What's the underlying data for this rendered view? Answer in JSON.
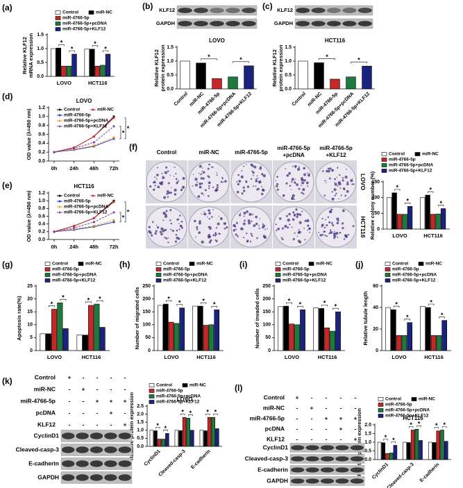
{
  "chart_data": [
    {
      "type": "bar",
      "label": "(a)",
      "ylabel": [
        "Relative KLF12",
        "mRNA expression"
      ],
      "categories": [
        "LOVO",
        "HCT116"
      ],
      "series": [
        {
          "name": "Control",
          "color": "#ffffff",
          "values": [
            1.0,
            0.98
          ]
        },
        {
          "name": "miR-NC",
          "color": "#000000",
          "values": [
            1.02,
            0.98
          ]
        },
        {
          "name": "miR-4766-5p",
          "color": "#c62828",
          "values": [
            0.37,
            0.37
          ]
        },
        {
          "name": "miR-4766-5p+pcDNA",
          "color": "#1b7a3c",
          "values": [
            0.37,
            0.4
          ]
        },
        {
          "name": "miR-4766-5p+KLF12",
          "color": "#1a237e",
          "values": [
            0.8,
            0.8
          ]
        }
      ],
      "ylim": [
        0,
        1.5
      ],
      "yticks": [
        {
          "value": 0,
          "label": "0.0"
        },
        0.5,
        {
          "value": 1,
          "label": "1.0"
        },
        1.5
      ],
      "annotations": [
        "*",
        "*",
        "*",
        "*"
      ]
    },
    {
      "type": "bar",
      "label": "(b)",
      "title": "LOVO",
      "ylabel": [
        "Relative KLF12",
        "protein expression"
      ],
      "categories": [
        "Control",
        "miR-NC",
        "miR-4766-5p",
        "miR-4766-5p+pcDNA",
        "miR-4766-5p+KLF12"
      ],
      "values": [
        1.0,
        0.93,
        0.37,
        0.43,
        0.83
      ],
      "colors": [
        "#ffffff",
        "#000000",
        "#c62828",
        "#1b7a3c",
        "#1a237e"
      ],
      "ylim": [
        0,
        1.5
      ],
      "yticks": [
        {
          "value": 0,
          "label": "0.0"
        },
        0.5,
        {
          "value": 1,
          "label": "1.0"
        },
        1.5
      ],
      "annotations": [
        "*",
        "*"
      ]
    },
    {
      "type": "bar",
      "label": "(c)",
      "title": "HCT116",
      "ylabel": [
        "Relative KLF12",
        "protein expression"
      ],
      "categories": [
        "Control",
        "miR-NC",
        "miR-4766-5p",
        "miR-4766-5p+pcDNA",
        "miR-4766-5p+KLF12"
      ],
      "values": [
        1.0,
        0.94,
        0.35,
        0.43,
        0.82
      ],
      "colors": [
        "#ffffff",
        "#000000",
        "#c62828",
        "#1b7a3c",
        "#1a237e"
      ],
      "ylim": [
        0,
        1.5
      ],
      "yticks": [
        {
          "value": 0,
          "label": "0.0"
        },
        0.5,
        {
          "value": 1,
          "label": "1.0"
        },
        1.5
      ],
      "annotations": [
        "*",
        "*"
      ]
    },
    {
      "type": "line",
      "label": "(d)",
      "title": "LOVO",
      "ylabel": [
        "OD value (λ=450 nm)"
      ],
      "categories": [
        "0h",
        "24h",
        "48h",
        "72h"
      ],
      "series": [
        {
          "name": "Control",
          "color": "#000000",
          "dash": false,
          "values": [
            0.2,
            0.3,
            0.55,
            1.0
          ]
        },
        {
          "name": "miR-NC",
          "color": "#d32f2f",
          "dash": false,
          "values": [
            0.2,
            0.3,
            0.55,
            0.97
          ]
        },
        {
          "name": "miR-4766-5p",
          "color": "#1e3ad6",
          "dash": false,
          "values": [
            0.2,
            0.25,
            0.33,
            0.5
          ]
        },
        {
          "name": "miR-4766-5p+pcDNA",
          "color": "#f39c12",
          "dash": true,
          "values": [
            0.2,
            0.26,
            0.35,
            0.53
          ]
        },
        {
          "name": "miR-4766-5p+KLF12",
          "color": "#7b3fa0",
          "dash": true,
          "values": [
            0.2,
            0.28,
            0.42,
            0.78
          ]
        }
      ],
      "ylim": [
        0,
        1.2
      ],
      "yticks": [
        {
          "value": 0,
          "label": "0.0"
        },
        0.2,
        0.4,
        0.6,
        0.8,
        {
          "value": 1,
          "label": "1.0"
        },
        1.2
      ],
      "annotations": [
        "*",
        "*"
      ]
    },
    {
      "type": "line",
      "label": "(e)",
      "title": "HCT116",
      "ylabel": [
        "OD value (λ=450 nm)"
      ],
      "categories": [
        "0h",
        "24h",
        "48h",
        "72h"
      ],
      "series": [
        {
          "name": "Control",
          "color": "#000000",
          "dash": false,
          "values": [
            0.2,
            0.35,
            0.55,
            1.0
          ]
        },
        {
          "name": "miR-NC",
          "color": "#d32f2f",
          "dash": false,
          "values": [
            0.2,
            0.35,
            0.55,
            0.97
          ]
        },
        {
          "name": "miR-4766-5p",
          "color": "#1e3ad6",
          "dash": false,
          "values": [
            0.2,
            0.25,
            0.33,
            0.45
          ]
        },
        {
          "name": "miR-4766-5p+pcDNA",
          "color": "#f39c12",
          "dash": true,
          "values": [
            0.2,
            0.27,
            0.35,
            0.5
          ]
        },
        {
          "name": "miR-4766-5p+KLF12",
          "color": "#7b3fa0",
          "dash": true,
          "values": [
            0.2,
            0.3,
            0.45,
            0.7
          ]
        }
      ],
      "ylim": [
        0,
        1.2
      ],
      "yticks": [
        {
          "value": 0,
          "label": "0.0"
        },
        0.2,
        0.4,
        0.6,
        0.8,
        {
          "value": 1,
          "label": "1.0"
        },
        1.2
      ],
      "annotations": [
        "*",
        "*"
      ]
    },
    {
      "type": "bar",
      "label": "(f)",
      "ylabel": [
        "Relative colony number (%)"
      ],
      "categories": [
        "LOVO",
        "HCT116"
      ],
      "series": [
        {
          "name": "Control",
          "color": "#ffffff",
          "values": [
            100,
            100
          ]
        },
        {
          "name": "miR-NC",
          "color": "#000000",
          "values": [
            115,
            108
          ]
        },
        {
          "name": "miR-4766-5p",
          "color": "#c62828",
          "values": [
            47,
            47
          ]
        },
        {
          "name": "miR-4766-5p+pcDNA",
          "color": "#1b7a3c",
          "values": [
            47,
            48
          ]
        },
        {
          "name": "miR-4766-5p+KLF12",
          "color": "#1a237e",
          "values": [
            72,
            65
          ]
        }
      ],
      "ylim": [
        0,
        150
      ],
      "yticks": [
        0,
        50,
        100,
        150
      ],
      "annotations": [
        "*",
        "*",
        "*",
        "*"
      ]
    },
    {
      "type": "bar",
      "label": "(g)",
      "ylabel": [
        "Apoptosis rate(%)"
      ],
      "categories": [
        "LOVO",
        "HCT116"
      ],
      "series": [
        {
          "name": "Control",
          "color": "#ffffff",
          "values": [
            6.5,
            6
          ]
        },
        {
          "name": "miR-NC",
          "color": "#000000",
          "values": [
            6.5,
            6
          ]
        },
        {
          "name": "miR-4766-5p",
          "color": "#c62828",
          "values": [
            16,
            17.5
          ]
        },
        {
          "name": "miR-4766-5p+pcDNA",
          "color": "#1b7a3c",
          "values": [
            18.5,
            18
          ]
        },
        {
          "name": "miR-4766-5p+KLF12",
          "color": "#1a237e",
          "values": [
            8.5,
            9
          ]
        }
      ],
      "ylim": [
        0,
        25
      ],
      "yticks": [
        0,
        5,
        10,
        15,
        20,
        25
      ],
      "annotations": [
        "*",
        "*",
        "*",
        "*"
      ]
    },
    {
      "type": "bar",
      "label": "(h)",
      "ylabel": [
        "Number of migrated cells"
      ],
      "categories": [
        "LOVO",
        "HCT116"
      ],
      "series": [
        {
          "name": "Control",
          "color": "#ffffff",
          "values": [
            175,
            172
          ]
        },
        {
          "name": "miR-NC",
          "color": "#000000",
          "values": [
            180,
            172
          ]
        },
        {
          "name": "miR-4766-5p",
          "color": "#c62828",
          "values": [
            110,
            98
          ]
        },
        {
          "name": "miR-4766-5p+pcDNA",
          "color": "#1b7a3c",
          "values": [
            105,
            100
          ]
        },
        {
          "name": "miR-4766-5p+KLF12",
          "color": "#1a237e",
          "values": [
            165,
            158
          ]
        }
      ],
      "ylim": [
        0,
        250
      ],
      "yticks": [
        0,
        50,
        100,
        150,
        200,
        250
      ],
      "annotations": [
        "*",
        "*",
        "*",
        "*"
      ]
    },
    {
      "type": "bar",
      "label": "(i)",
      "ylabel": [
        "Number of invaded cells"
      ],
      "categories": [
        "LOVO",
        "HCT116"
      ],
      "series": [
        {
          "name": "Control",
          "color": "#ffffff",
          "values": [
            170,
            165
          ]
        },
        {
          "name": "miR-NC",
          "color": "#000000",
          "values": [
            172,
            163
          ]
        },
        {
          "name": "miR-4766-5p",
          "color": "#c62828",
          "values": [
            103,
            88
          ]
        },
        {
          "name": "miR-4766-5p+pcDNA",
          "color": "#1b7a3c",
          "values": [
            100,
            75
          ]
        },
        {
          "name": "miR-4766-5p+KLF12",
          "color": "#1a237e",
          "values": [
            158,
            150
          ]
        }
      ],
      "ylim": [
        0,
        250
      ],
      "yticks": [
        0,
        50,
        100,
        150,
        200,
        250
      ],
      "annotations": [
        "*",
        "*",
        "*",
        "*"
      ]
    },
    {
      "type": "bar",
      "label": "(j)",
      "ylabel": [
        "Relative tubule length"
      ],
      "categories": [
        "LOVO",
        "HCT116"
      ],
      "series": [
        {
          "name": "Control",
          "color": "#ffffff",
          "values": [
            40,
            41
          ]
        },
        {
          "name": "miR-NC",
          "color": "#000000",
          "values": [
            38,
            40
          ]
        },
        {
          "name": "miR-4766-5p",
          "color": "#c62828",
          "values": [
            14,
            14
          ]
        },
        {
          "name": "miR-4766-5p+pcDNA",
          "color": "#1b7a3c",
          "values": [
            14,
            14
          ]
        },
        {
          "name": "miR-4766-5p+KLF12",
          "color": "#1a237e",
          "values": [
            26,
            28
          ]
        }
      ],
      "ylim": [
        0,
        60
      ],
      "yticks": [
        0,
        20,
        40,
        60
      ],
      "annotations": [
        "*",
        "*",
        "*",
        "*"
      ]
    },
    {
      "type": "bar",
      "label": "(k)",
      "title": "LOVO",
      "ylabel": [
        "Relative protein expression"
      ],
      "categories": [
        "CyclinD1",
        "Cleaved-casp-3",
        "E-cadherin"
      ],
      "series": [
        {
          "name": "Control",
          "color": "#ffffff",
          "values": [
            1.0,
            1.0,
            1.0
          ]
        },
        {
          "name": "miR-NC",
          "color": "#000000",
          "values": [
            0.97,
            0.98,
            0.97
          ]
        },
        {
          "name": "miR-4766-5p",
          "color": "#c62828",
          "values": [
            0.45,
            1.8,
            1.8
          ]
        },
        {
          "name": "miR-4766-5p+pcDNA",
          "color": "#1b7a3c",
          "values": [
            0.45,
            1.75,
            1.8
          ]
        },
        {
          "name": "miR-4766-5p+KLF12",
          "color": "#1a237e",
          "values": [
            0.8,
            1.0,
            1.1
          ]
        }
      ],
      "ylim": [
        0,
        2.5
      ],
      "yticks": [
        {
          "value": 0,
          "label": "0.0"
        },
        0.5,
        {
          "value": 1,
          "label": "1.0"
        },
        1.5,
        {
          "value": 2,
          "label": "2.0"
        },
        2.5
      ],
      "annotations": [
        "*",
        "*",
        "*",
        "*",
        "*",
        "*"
      ]
    },
    {
      "type": "bar",
      "label": "(l)",
      "title": "HCT116",
      "ylabel": [
        "Relative protein expression"
      ],
      "categories": [
        "CyclinD1",
        "Cleaved-casp-3",
        "E-cadherin"
      ],
      "series": [
        {
          "name": "Control",
          "color": "#ffffff",
          "values": [
            1.0,
            1.0,
            1.0
          ]
        },
        {
          "name": "miR-NC",
          "color": "#000000",
          "values": [
            0.97,
            0.98,
            0.98
          ]
        },
        {
          "name": "miR-4766-5p",
          "color": "#c62828",
          "values": [
            0.35,
            1.7,
            1.65
          ]
        },
        {
          "name": "miR-4766-5p+pcDNA",
          "color": "#1b7a3c",
          "values": [
            0.38,
            1.75,
            1.7
          ]
        },
        {
          "name": "miR-4766-5p+KLF12",
          "color": "#1a237e",
          "values": [
            0.82,
            1.1,
            1.05
          ]
        }
      ],
      "ylim": [
        0,
        2.0
      ],
      "yticks": [
        {
          "value": 0,
          "label": "0.0"
        },
        0.5,
        {
          "value": 1,
          "label": "1.0"
        },
        1.5,
        {
          "value": 2,
          "label": "2.0"
        }
      ],
      "annotations": [
        "*",
        "*",
        "*",
        "*",
        "*",
        "*"
      ]
    }
  ],
  "blots": {
    "b": [
      "KLF12",
      "GAPDH"
    ],
    "c": [
      "KLF12",
      "GAPDH"
    ],
    "k": {
      "treatments": [
        {
          "name": "Control",
          "signs": [
            "+",
            "-",
            "-",
            "-",
            "-"
          ]
        },
        {
          "name": "miR-NC",
          "signs": [
            "-",
            "+",
            "-",
            "-",
            "-"
          ]
        },
        {
          "name": "miR-4766-5p",
          "signs": [
            "-",
            "-",
            "+",
            "+",
            "+"
          ]
        },
        {
          "name": "pcDNA",
          "signs": [
            "-",
            "-",
            "-",
            "+",
            "-"
          ]
        },
        {
          "name": "KLF12",
          "signs": [
            "-",
            "-",
            "-",
            "-",
            "+"
          ]
        }
      ],
      "proteins": [
        "CyclinD1",
        "Cleaved-casp-3",
        "E-cadherin",
        "GAPDH"
      ]
    },
    "l": {
      "treatments": [
        {
          "name": "Control",
          "signs": [
            "+",
            "-",
            "-",
            "-",
            "-"
          ]
        },
        {
          "name": "miR-NC",
          "signs": [
            "-",
            "+",
            "-",
            "-",
            "-"
          ]
        },
        {
          "name": "miR-4766-5p",
          "signs": [
            "-",
            "-",
            "+",
            "+",
            "+"
          ]
        },
        {
          "name": "pcDNA",
          "signs": [
            "-",
            "-",
            "-",
            "+",
            "-"
          ]
        },
        {
          "name": "KLF12",
          "signs": [
            "-",
            "-",
            "-",
            "-",
            "+"
          ]
        }
      ],
      "proteins": [
        "CyclinD1",
        "Cleaved-casp-3",
        "E-cadherin",
        "GAPDH"
      ]
    }
  },
  "colony": {
    "columns": [
      [
        "Control"
      ],
      [
        "miR-NC"
      ],
      [
        "miR-4766-5p"
      ],
      [
        "miR-4766-5p",
        "+pcDNA"
      ],
      [
        "miR-4766-5p",
        "+KLF12"
      ]
    ],
    "rows": [
      "LOVO",
      "HCT116"
    ]
  }
}
